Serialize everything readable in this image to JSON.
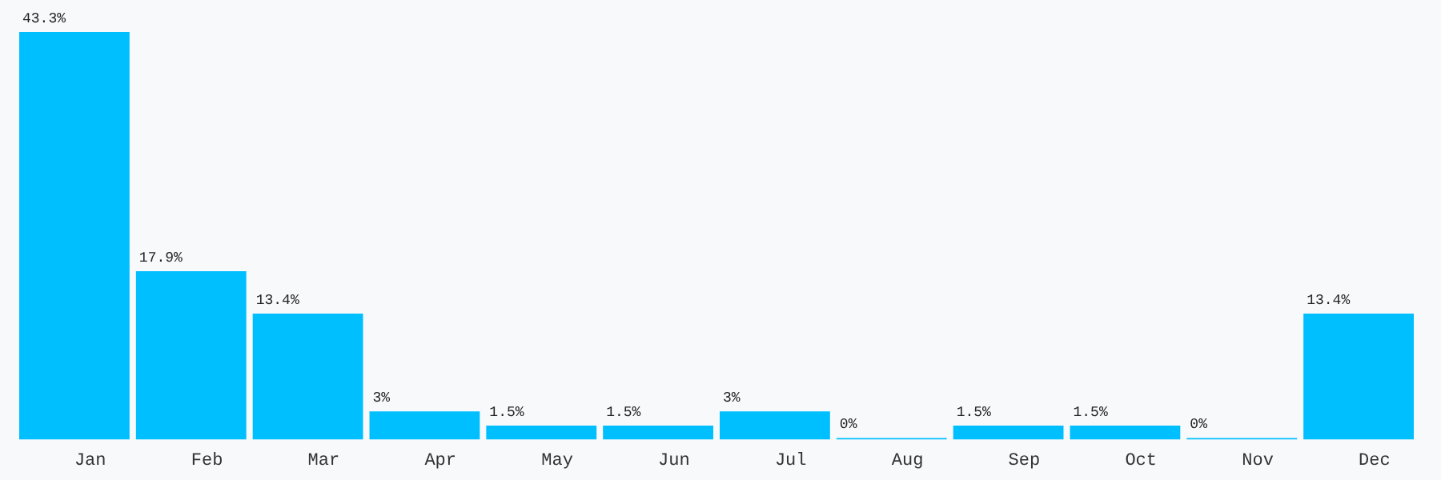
{
  "chart_data": {
    "type": "bar",
    "categories": [
      "Jan",
      "Feb",
      "Mar",
      "Apr",
      "May",
      "Jun",
      "Jul",
      "Aug",
      "Sep",
      "Oct",
      "Nov",
      "Dec"
    ],
    "values": [
      43.3,
      17.9,
      13.4,
      3,
      1.5,
      1.5,
      3,
      0,
      1.5,
      1.5,
      0,
      13.4
    ],
    "value_labels": [
      "43.3%",
      "17.9%",
      "13.4%",
      "3%",
      "1.5%",
      "1.5%",
      "3%",
      "0%",
      "1.5%",
      "1.5%",
      "0%",
      "13.4%"
    ],
    "color": "#00bfff",
    "grid": false,
    "legend": false
  }
}
